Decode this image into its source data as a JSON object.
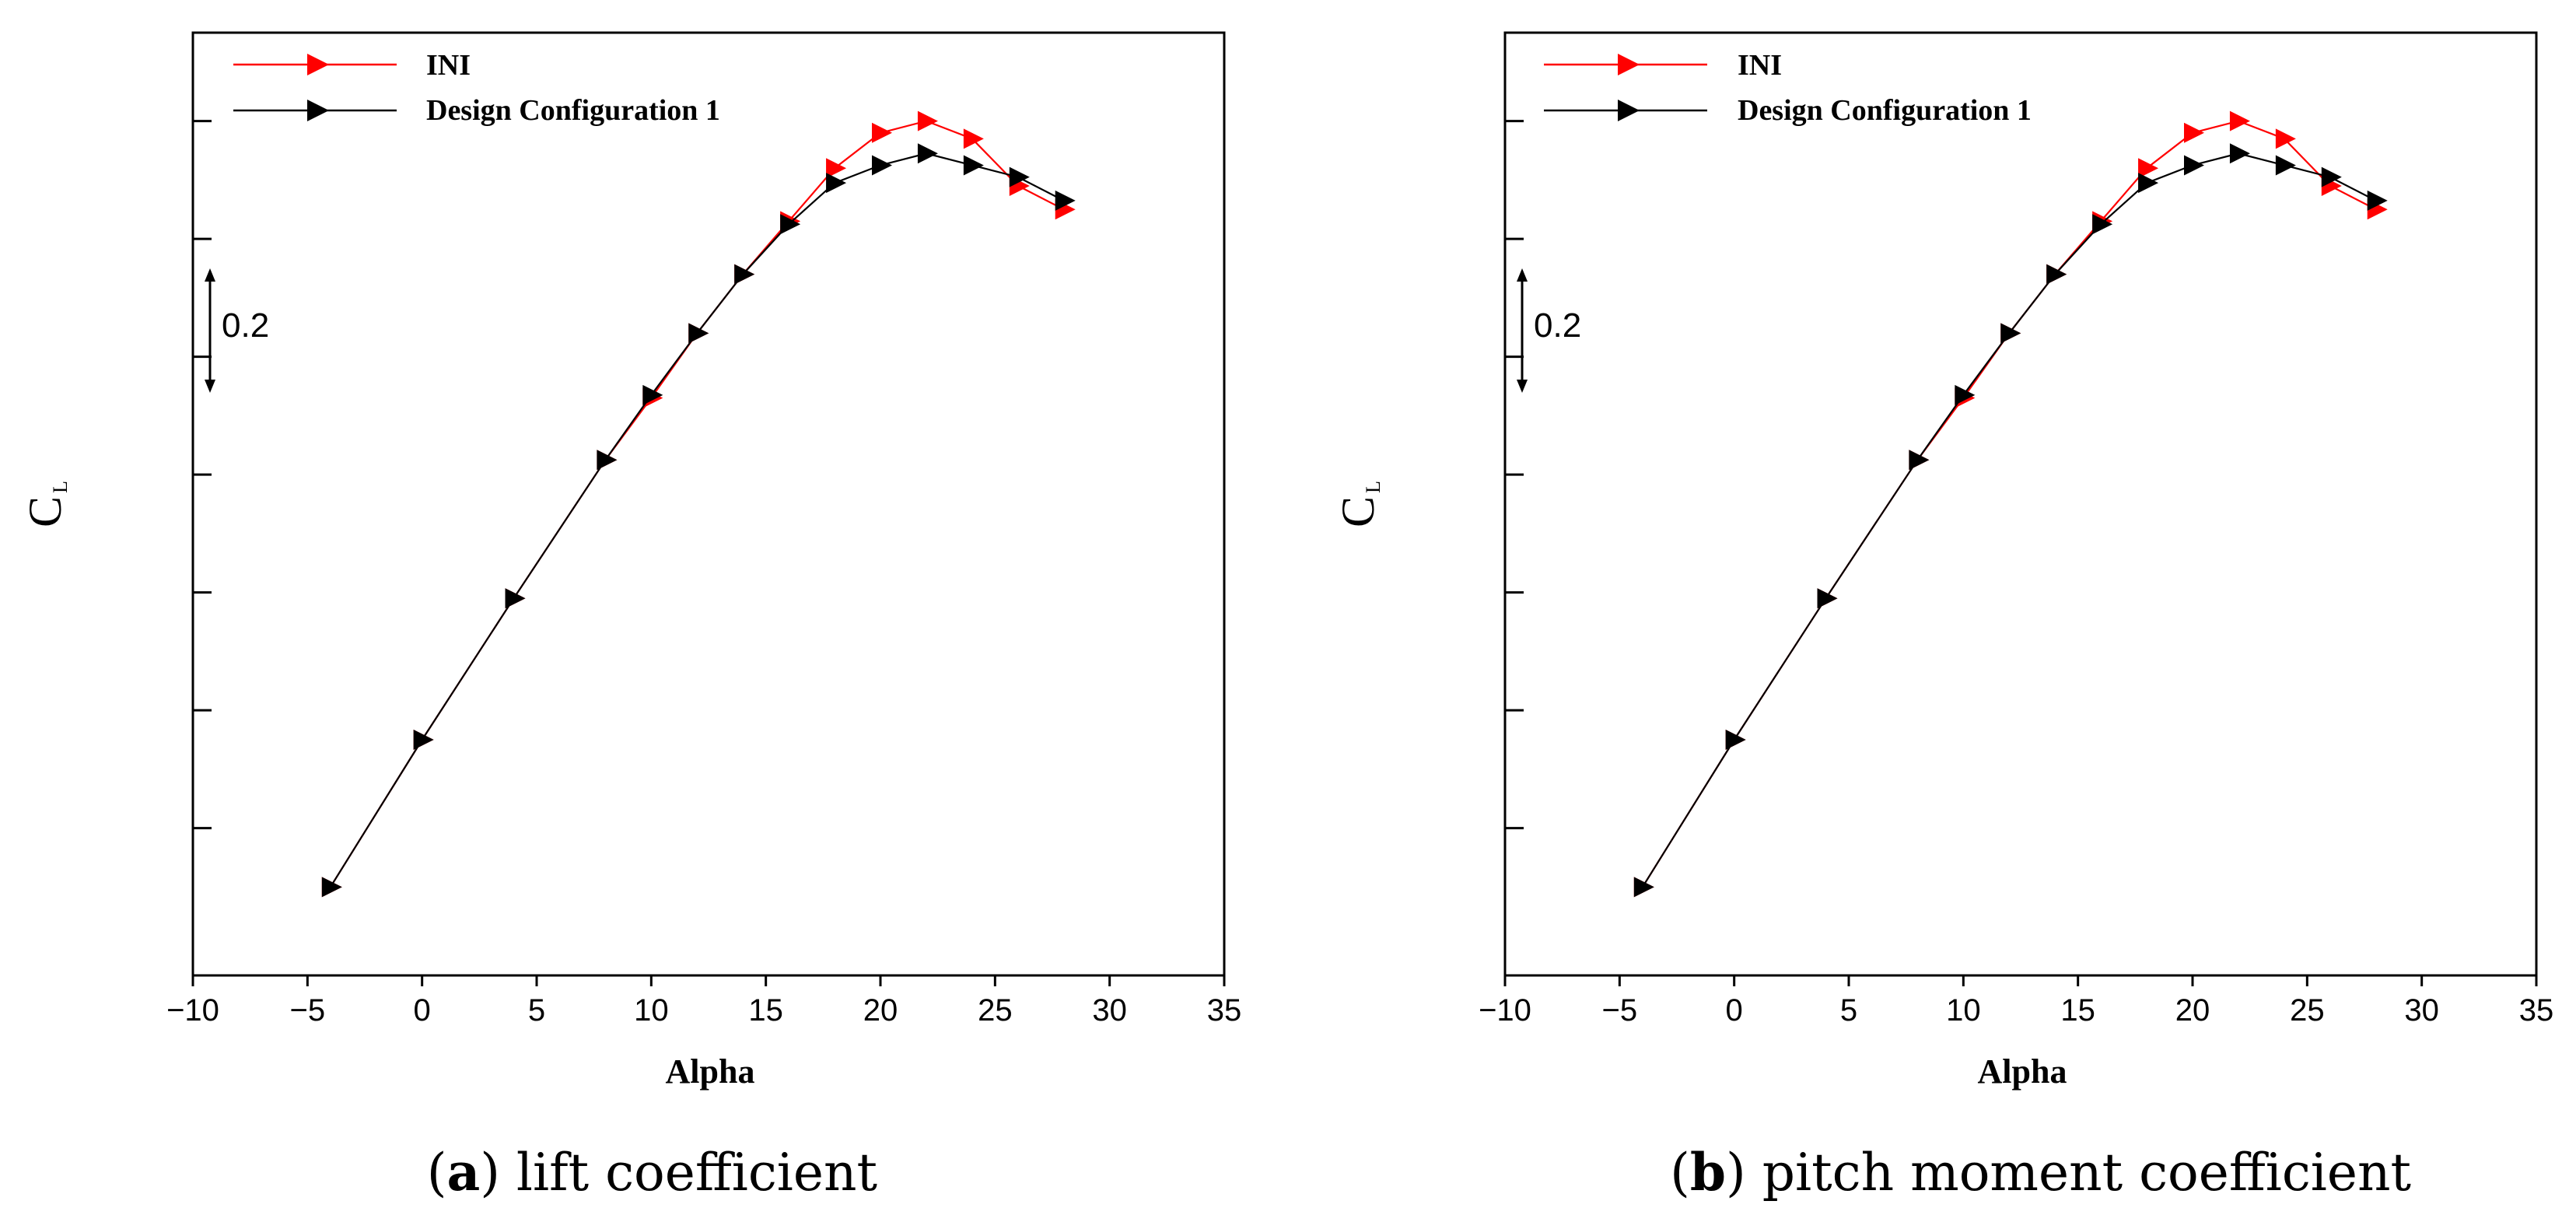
{
  "colors": {
    "ini": "#ff0000",
    "design": "#000000",
    "axis": "#000000"
  },
  "legend": {
    "series": [
      "INI",
      "Design Configuration 1"
    ]
  },
  "chart_data": [
    {
      "type": "line",
      "panel_letter": "a",
      "caption_text": " lift coefficient",
      "xlabel": "Alpha",
      "ylabel": "C",
      "ylabel_sub": "L",
      "scale_bar_label": "0.2",
      "xlim": [
        -10,
        35
      ],
      "ylim": [
        -0.45,
        1.15
      ],
      "xticks": [
        -10,
        -5,
        0,
        5,
        10,
        15,
        20,
        25,
        30,
        35
      ],
      "xtick_labels": [
        "−10",
        "−5",
        "0",
        "5",
        "10",
        "15",
        "20",
        "25",
        "30",
        "35"
      ],
      "yticks": [
        -0.2,
        0.0,
        0.2,
        0.4,
        0.6,
        0.8,
        1.0
      ],
      "legend_position": "top-left",
      "series": [
        {
          "name": "INI",
          "color": "#ff0000",
          "x": [
            -4,
            0,
            4,
            8,
            10,
            12,
            14,
            16,
            18,
            20,
            22,
            24,
            26,
            28
          ],
          "y": [
            -0.3,
            -0.05,
            0.19,
            0.425,
            0.53,
            0.64,
            0.74,
            0.83,
            0.92,
            0.98,
            1.0,
            0.97,
            0.89,
            0.85
          ]
        },
        {
          "name": "Design Configuration 1",
          "color": "#000000",
          "x": [
            -4,
            0,
            4,
            8,
            10,
            12,
            14,
            16,
            18,
            20,
            22,
            24,
            26,
            28
          ],
          "y": [
            -0.3,
            -0.05,
            0.19,
            0.425,
            0.535,
            0.64,
            0.74,
            0.825,
            0.895,
            0.925,
            0.945,
            0.925,
            0.905,
            0.865
          ]
        }
      ]
    },
    {
      "type": "line",
      "panel_letter": "b",
      "caption_text": " pitch moment coefficient",
      "xlabel": "Alpha",
      "ylabel": "C",
      "ylabel_sub": "L",
      "scale_bar_label": "0.2",
      "xlim": [
        -10,
        35
      ],
      "ylim": [
        -0.45,
        1.15
      ],
      "xticks": [
        -10,
        -5,
        0,
        5,
        10,
        15,
        20,
        25,
        30,
        35
      ],
      "xtick_labels": [
        "−10",
        "−5",
        "0",
        "5",
        "10",
        "15",
        "20",
        "25",
        "30",
        "35"
      ],
      "yticks": [
        -0.2,
        0.0,
        0.2,
        0.4,
        0.6,
        0.8,
        1.0
      ],
      "legend_position": "top-left",
      "series": [
        {
          "name": "INI",
          "color": "#ff0000",
          "x": [
            -4,
            0,
            4,
            8,
            10,
            12,
            14,
            16,
            18,
            20,
            22,
            24,
            26,
            28
          ],
          "y": [
            -0.3,
            -0.05,
            0.19,
            0.425,
            0.53,
            0.64,
            0.74,
            0.83,
            0.92,
            0.98,
            1.0,
            0.97,
            0.89,
            0.85
          ]
        },
        {
          "name": "Design Configuration 1",
          "color": "#000000",
          "x": [
            -4,
            0,
            4,
            8,
            10,
            12,
            14,
            16,
            18,
            20,
            22,
            24,
            26,
            28
          ],
          "y": [
            -0.3,
            -0.05,
            0.19,
            0.425,
            0.535,
            0.64,
            0.74,
            0.825,
            0.895,
            0.925,
            0.945,
            0.925,
            0.905,
            0.865
          ]
        }
      ]
    }
  ]
}
